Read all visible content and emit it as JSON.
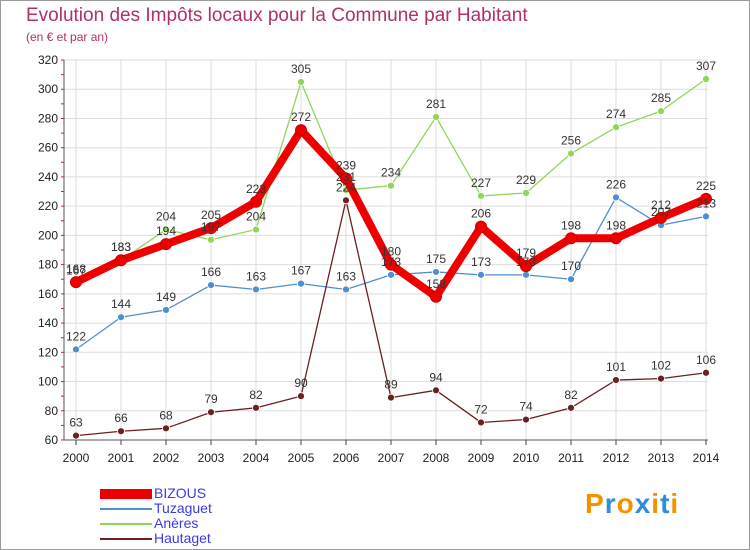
{
  "chart_data": {
    "type": "line",
    "title": "Evolution des Impôts locaux pour la Commune par Habitant",
    "subtitle": "(en € et par an)",
    "categories": [
      "2000",
      "2001",
      "2002",
      "2003",
      "2004",
      "2005",
      "2006",
      "2007",
      "2008",
      "2009",
      "2010",
      "2011",
      "2012",
      "2013",
      "2014"
    ],
    "ylim": [
      60,
      320
    ],
    "yticks": [
      60,
      80,
      100,
      120,
      140,
      160,
      180,
      200,
      220,
      240,
      260,
      280,
      300,
      320
    ],
    "grid": true,
    "legend_position": "bottom-left",
    "series": [
      {
        "name": "BIZOUS",
        "color": "#ee0000",
        "values": [
          168,
          183,
          194,
          205,
          223,
          272,
          239,
          180,
          158,
          206,
          179,
          198,
          198,
          212,
          225
        ],
        "labels": [
          "168",
          "183",
          "194",
          "205",
          "223",
          "272",
          "239",
          "180",
          "158",
          "206",
          "179",
          "198",
          "198",
          "212",
          "225"
        ]
      },
      {
        "name": "Tuzaguet",
        "color": "#4d8fd1",
        "values": [
          122,
          144,
          149,
          166,
          163,
          167,
          163,
          173,
          175,
          173,
          173,
          170,
          226,
          207,
          213
        ],
        "labels": [
          "122",
          "144",
          "149",
          "166",
          "163",
          "167",
          "163",
          "173",
          "175",
          "173",
          "173",
          "170",
          "226",
          "207",
          "213"
        ]
      },
      {
        "name": "Anères",
        "color": "#8fd65a",
        "values": [
          167,
          183,
          204,
          197,
          204,
          305,
          231,
          234,
          281,
          227,
          229,
          256,
          274,
          285,
          307
        ],
        "labels": [
          "167",
          "183",
          "204",
          "197",
          "204",
          "305",
          "231",
          "234",
          "281",
          "227",
          "229",
          "256",
          "274",
          "285",
          "307"
        ]
      },
      {
        "name": "Hautaget",
        "color": "#6e1f1f",
        "values": [
          63,
          66,
          68,
          79,
          82,
          90,
          224,
          89,
          94,
          72,
          74,
          82,
          101,
          102,
          106
        ],
        "labels": [
          "63",
          "66",
          "68",
          "79",
          "82",
          "90",
          "224",
          "89",
          "94",
          "72",
          "74",
          "82",
          "101",
          "102",
          "106"
        ]
      }
    ]
  },
  "logo": {
    "text": "Proxiti",
    "colors": [
      "#f39200",
      "#2e8fd8",
      "#f39200",
      "#2e8fd8",
      "#f39200",
      "#2e8fd8",
      "#f39200"
    ]
  }
}
